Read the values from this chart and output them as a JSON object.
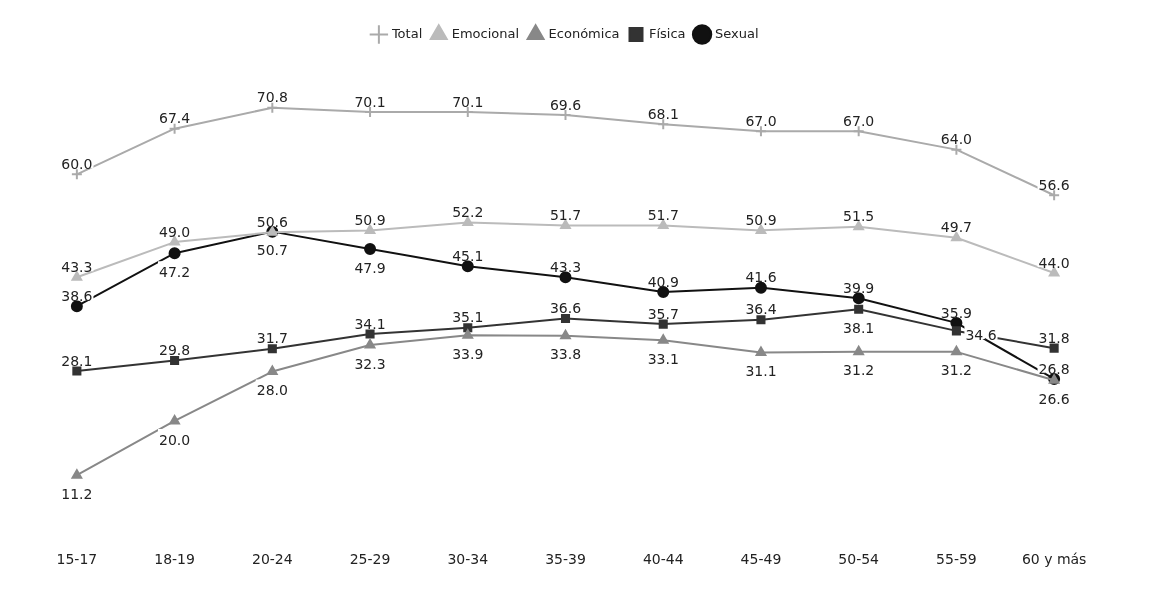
{
  "chart_data": {
    "type": "line",
    "categories": [
      "15-17",
      "18-19",
      "20-24",
      "25-29",
      "30-34",
      "35-39",
      "40-44",
      "45-49",
      "50-54",
      "55-59",
      "60 y más"
    ],
    "series": [
      {
        "name": "Total",
        "color": "#aaaaaa",
        "marker": "cross",
        "values": [
          60.0,
          67.4,
          70.8,
          70.1,
          70.1,
          69.6,
          68.1,
          67.0,
          67.0,
          64.0,
          56.6
        ],
        "value_labels": [
          "60.0",
          "67.4",
          "70.8",
          "70.1",
          "70.1",
          "69.6",
          "68.1",
          "67.0",
          "67.0",
          "64.0",
          "56.6"
        ]
      },
      {
        "name": "Emocional",
        "color": "#bbbbbb",
        "marker": "triangle",
        "values": [
          43.3,
          49.0,
          50.6,
          50.9,
          52.2,
          51.7,
          51.7,
          50.9,
          51.5,
          49.7,
          44.0
        ],
        "value_labels": [
          "43.3",
          "49.0",
          "50.6",
          "50.9",
          "52.2",
          "51.7",
          "51.7",
          "50.9",
          "51.5",
          "49.7",
          "44.0"
        ]
      },
      {
        "name": "Económica",
        "color": "#888888",
        "marker": "triangle",
        "values": [
          11.2,
          20.0,
          28.0,
          32.3,
          33.9,
          33.8,
          33.1,
          31.1,
          31.2,
          31.2,
          26.6
        ],
        "value_labels": [
          "11.2",
          "20.0",
          "28.0",
          "32.3",
          "33.9",
          "33.8",
          "33.1",
          "31.1",
          "31.2",
          "31.2",
          "26.6"
        ]
      },
      {
        "name": "Física",
        "color": "#333333",
        "marker": "square",
        "values": [
          28.1,
          29.8,
          31.7,
          34.1,
          35.1,
          36.6,
          35.7,
          36.4,
          38.1,
          34.6,
          31.8
        ],
        "value_labels": [
          "28.1",
          "29.8",
          "31.7",
          "34.1",
          "35.1",
          "36.6",
          "35.7",
          "36.4",
          "38.1",
          "34.6",
          "31.8"
        ]
      },
      {
        "name": "Sexual",
        "color": "#111111",
        "marker": "circle",
        "values": [
          38.6,
          47.2,
          50.7,
          47.9,
          45.1,
          43.3,
          40.9,
          41.6,
          39.9,
          35.9,
          26.8
        ],
        "value_labels": [
          "38.6",
          "47.2",
          "50.7",
          "47.9",
          "45.1",
          "43.3",
          "40.9",
          "41.6",
          "39.9",
          "35.9",
          "26.8"
        ]
      }
    ],
    "legend": "top",
    "grid": false
  }
}
